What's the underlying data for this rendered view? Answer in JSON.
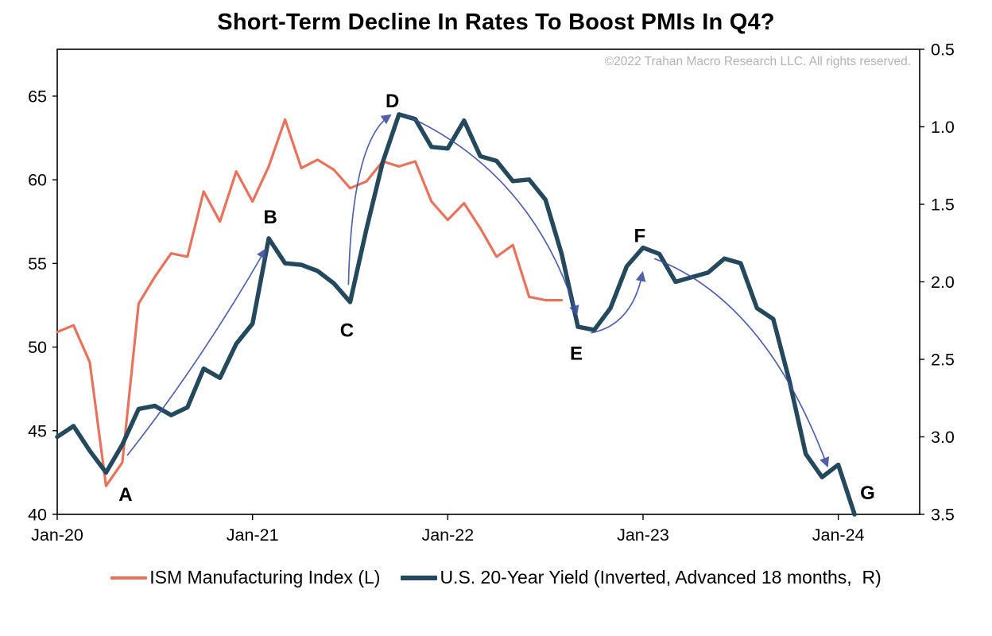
{
  "title": "Short-Term Decline In Rates To Boost PMIs In Q4?",
  "copyright": "©2022 Trahan Macro Research LLC. All rights reserved.",
  "colors": {
    "ism": "#e8735c",
    "yield": "#25495c",
    "arrow": "#3f51a0",
    "axis": "#000000"
  },
  "legend": [
    {
      "id": "ism",
      "label": "ISM Manufacturing Index (L)"
    },
    {
      "id": "yield",
      "label": "U.S. 20-Year Yield (Inverted, Advanced 18 months,  R)"
    }
  ],
  "chart_data": {
    "type": "line",
    "title": "Short-Term Decline In Rates To Boost PMIs In Q4?",
    "x_axis": {
      "unit": "months since Jan-2020",
      "max_months": 53,
      "tick_months": [
        0,
        12,
        24,
        36,
        48
      ],
      "tick_labels": [
        "Jan-20",
        "Jan-21",
        "Jan-22",
        "Jan-23",
        "Jan-24"
      ]
    },
    "left_axis": {
      "label": "ISM Manufacturing Index",
      "min": 40,
      "max": 67.8,
      "ticks": [
        {
          "v": 65,
          "label": "65"
        },
        {
          "v": 60,
          "label": "60"
        },
        {
          "v": 55,
          "label": "55"
        },
        {
          "v": 50,
          "label": "50"
        },
        {
          "v": 45,
          "label": "45"
        },
        {
          "v": 40,
          "label": "40"
        }
      ]
    },
    "right_axis": {
      "label": "U.S. 20-Year Yield (inverted)",
      "min": 0.5,
      "max": 3.5,
      "inverted": true,
      "ticks": [
        {
          "v": 0.5,
          "label": "0.5"
        },
        {
          "v": 1.0,
          "label": "1.0"
        },
        {
          "v": 1.5,
          "label": "1.5"
        },
        {
          "v": 2.0,
          "label": "2.0"
        },
        {
          "v": 2.5,
          "label": "2.5"
        },
        {
          "v": 3.0,
          "label": "3.0"
        },
        {
          "v": 3.5,
          "label": "3.5"
        }
      ]
    },
    "series": [
      {
        "name": "ISM Manufacturing Index (L)",
        "axis": "left",
        "color_key": "ism",
        "stroke_width": 3.2,
        "start_month": 0,
        "monthly_values": [
          50.9,
          51.3,
          49.1,
          41.7,
          43.1,
          52.6,
          54.2,
          55.6,
          55.4,
          59.3,
          57.5,
          60.5,
          58.7,
          60.8,
          63.6,
          60.7,
          61.2,
          60.6,
          59.5,
          59.9,
          61.1,
          60.8,
          61.1,
          58.7,
          57.6,
          58.6,
          57.1,
          55.4,
          56.1,
          53.0,
          52.8,
          52.8
        ]
      },
      {
        "name": "U.S. 20-Year Yield (Inverted, Advanced 18 months, R)",
        "axis": "right",
        "color_key": "yield",
        "stroke_width": 5.5,
        "start_month": 0,
        "monthly_values": [
          3.0,
          2.93,
          3.09,
          3.23,
          3.05,
          2.82,
          2.8,
          2.86,
          2.81,
          2.56,
          2.62,
          2.4,
          2.27,
          1.72,
          1.88,
          1.89,
          1.93,
          2.01,
          2.13,
          1.66,
          1.23,
          0.92,
          0.95,
          1.13,
          1.14,
          0.96,
          1.19,
          1.22,
          1.35,
          1.34,
          1.47,
          1.82,
          2.29,
          2.31,
          2.17,
          1.9,
          1.78,
          1.82,
          2.0,
          1.97,
          1.94,
          1.85,
          1.88,
          2.17,
          2.24,
          2.64,
          3.11,
          3.26,
          3.18,
          3.5
        ]
      }
    ],
    "annotations": [
      {
        "label": "A",
        "month": 4.2,
        "value": 3.37
      },
      {
        "label": "B",
        "month": 13.1,
        "value": 1.58
      },
      {
        "label": "C",
        "month": 17.8,
        "value": 2.31
      },
      {
        "label": "D",
        "month": 20.6,
        "value": 0.83
      },
      {
        "label": "E",
        "month": 31.9,
        "value": 2.46
      },
      {
        "label": "F",
        "month": 35.8,
        "value": 1.7
      },
      {
        "label": "G",
        "month": 49.8,
        "value": 3.36
      }
    ],
    "arrows": [
      {
        "from_label": "A",
        "to_label": "B",
        "from": [
          4.3,
          3.12
        ],
        "ctrl": [
          8.8,
          2.52
        ],
        "to": [
          12.75,
          1.8
        ]
      },
      {
        "from_label": "C",
        "to_label": "D",
        "from": [
          17.9,
          2.02
        ],
        "ctrl": [
          18.1,
          1.1
        ],
        "to": [
          20.4,
          0.93
        ]
      },
      {
        "from_label": "D",
        "to_label": "E",
        "from": [
          21.5,
          0.93
        ],
        "ctrl": [
          29.2,
          1.3
        ],
        "to": [
          31.9,
          2.2
        ]
      },
      {
        "from_label": "E",
        "to_label": "F",
        "from": [
          32.8,
          2.33
        ],
        "ctrl": [
          35.3,
          2.28
        ],
        "to": [
          35.95,
          1.95
        ]
      },
      {
        "from_label": "F",
        "to_label": "G",
        "from": [
          36.7,
          1.85
        ],
        "ctrl": [
          43.5,
          2.12
        ],
        "to": [
          47.3,
          3.18
        ]
      }
    ]
  }
}
